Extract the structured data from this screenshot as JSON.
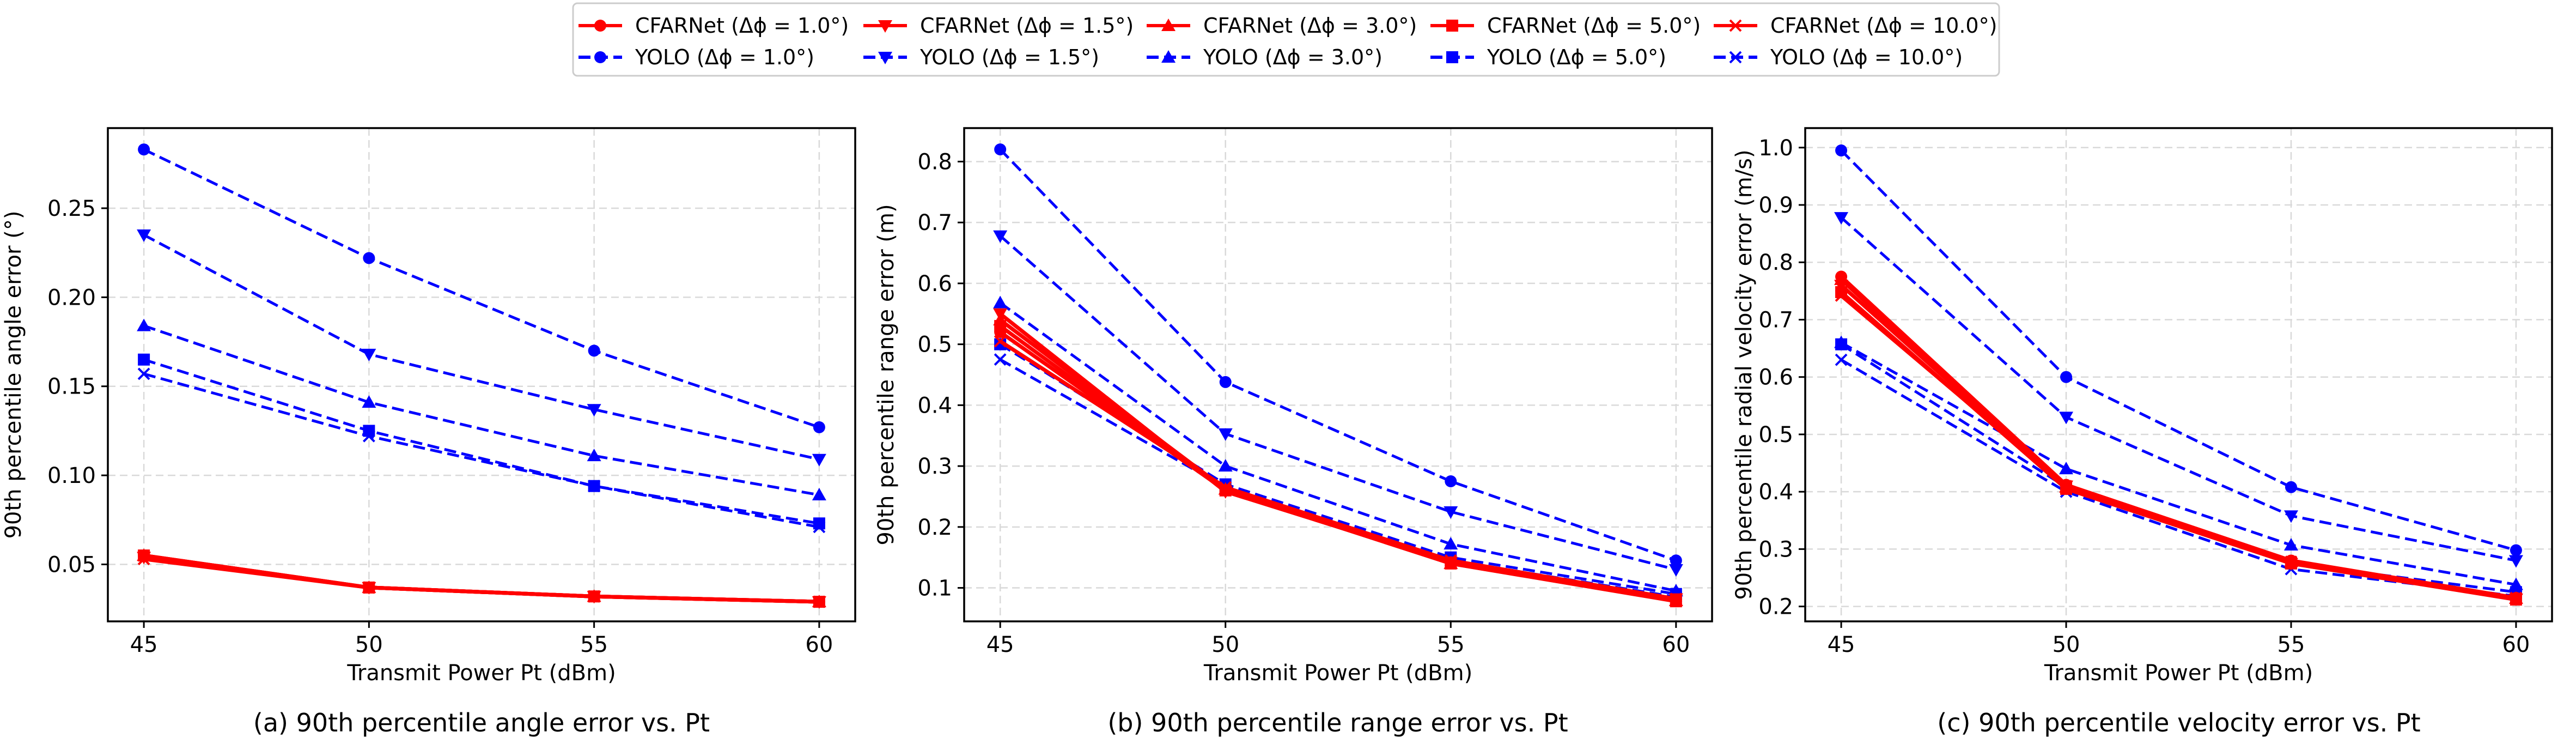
{
  "legend": {
    "entries": [
      {
        "label": "CFARNet (Δϕ = 1.0°)",
        "color": "#ff0000",
        "dash": "solid",
        "marker": "circle"
      },
      {
        "label": "CFARNet (Δϕ = 1.5°)",
        "color": "#ff0000",
        "dash": "solid",
        "marker": "triangle-down"
      },
      {
        "label": "CFARNet (Δϕ = 3.0°)",
        "color": "#ff0000",
        "dash": "solid",
        "marker": "triangle-up"
      },
      {
        "label": "CFARNet (Δϕ = 5.0°)",
        "color": "#ff0000",
        "dash": "solid",
        "marker": "square"
      },
      {
        "label": "CFARNet (Δϕ = 10.0°)",
        "color": "#ff0000",
        "dash": "solid",
        "marker": "x"
      },
      {
        "label": "YOLO (Δϕ = 1.0°)",
        "color": "#0000ff",
        "dash": "dashed",
        "marker": "circle"
      },
      {
        "label": "YOLO (Δϕ = 1.5°)",
        "color": "#0000ff",
        "dash": "dashed",
        "marker": "triangle-down"
      },
      {
        "label": "YOLO (Δϕ = 3.0°)",
        "color": "#0000ff",
        "dash": "dashed",
        "marker": "triangle-up"
      },
      {
        "label": "YOLO (Δϕ = 5.0°)",
        "color": "#0000ff",
        "dash": "dashed",
        "marker": "square"
      },
      {
        "label": "YOLO (Δϕ = 10.0°)",
        "color": "#0000ff",
        "dash": "dashed",
        "marker": "x"
      }
    ]
  },
  "chart_data": [
    {
      "type": "line",
      "title": "(a) 90th percentile angle error vs. Pt",
      "xlabel": "Transmit Power Pt (dBm)",
      "ylabel": "90th percentile angle error (°)",
      "x": [
        45,
        50,
        55,
        60
      ],
      "xticks": [
        45,
        50,
        55,
        60
      ],
      "xlim": [
        44.2,
        60.8
      ],
      "yticks": [
        0.05,
        0.1,
        0.15,
        0.2,
        0.25
      ],
      "yticklabels": [
        "0.05",
        "0.10",
        "0.15",
        "0.20",
        "0.25"
      ],
      "ylim": [
        0.018,
        0.295
      ],
      "grid": true,
      "series": [
        {
          "name": "YOLO (Δϕ = 1.0°)",
          "values": [
            0.283,
            0.222,
            0.17,
            0.127
          ]
        },
        {
          "name": "YOLO (Δϕ = 1.5°)",
          "values": [
            0.235,
            0.168,
            0.137,
            0.109
          ]
        },
        {
          "name": "YOLO (Δϕ = 3.0°)",
          "values": [
            0.184,
            0.141,
            0.111,
            0.089
          ]
        },
        {
          "name": "YOLO (Δϕ = 5.0°)",
          "values": [
            0.165,
            0.125,
            0.094,
            0.073
          ]
        },
        {
          "name": "YOLO (Δϕ = 10.0°)",
          "values": [
            0.157,
            0.122,
            0.094,
            0.071
          ]
        },
        {
          "name": "CFARNet (Δϕ = 1.0°)",
          "values": [
            0.055,
            0.037,
            0.032,
            0.029
          ]
        },
        {
          "name": "CFARNet (Δϕ = 1.5°)",
          "values": [
            0.054,
            0.037,
            0.032,
            0.029
          ]
        },
        {
          "name": "CFARNet (Δϕ = 3.0°)",
          "values": [
            0.055,
            0.037,
            0.032,
            0.029
          ]
        },
        {
          "name": "CFARNet (Δϕ = 5.0°)",
          "values": [
            0.055,
            0.037,
            0.032,
            0.029
          ]
        },
        {
          "name": "CFARNet (Δϕ = 10.0°)",
          "values": [
            0.053,
            0.037,
            0.032,
            0.029
          ]
        }
      ]
    },
    {
      "type": "line",
      "title": "(b) 90th percentile range error vs. Pt",
      "xlabel": "Transmit Power Pt (dBm)",
      "ylabel": "90th percentile range error (m)",
      "x": [
        45,
        50,
        55,
        60
      ],
      "xticks": [
        45,
        50,
        55,
        60
      ],
      "xlim": [
        44.2,
        60.8
      ],
      "yticks": [
        0.1,
        0.2,
        0.3,
        0.4,
        0.5,
        0.6,
        0.7,
        0.8
      ],
      "yticklabels": [
        "0.1",
        "0.2",
        "0.3",
        "0.4",
        "0.5",
        "0.6",
        "0.7",
        "0.8"
      ],
      "ylim": [
        0.045,
        0.855
      ],
      "grid": true,
      "series": [
        {
          "name": "YOLO (Δϕ = 1.0°)",
          "values": [
            0.82,
            0.438,
            0.275,
            0.145
          ]
        },
        {
          "name": "YOLO (Δϕ = 1.5°)",
          "values": [
            0.678,
            0.353,
            0.225,
            0.13
          ]
        },
        {
          "name": "YOLO (Δϕ = 3.0°)",
          "values": [
            0.568,
            0.3,
            0.172,
            0.095
          ]
        },
        {
          "name": "YOLO (Δϕ = 5.0°)",
          "values": [
            0.5,
            0.27,
            0.15,
            0.09
          ]
        },
        {
          "name": "YOLO (Δϕ = 10.0°)",
          "values": [
            0.475,
            0.265,
            0.145,
            0.085
          ]
        },
        {
          "name": "CFARNet (Δϕ = 1.0°)",
          "values": [
            0.52,
            0.26,
            0.142,
            0.08
          ]
        },
        {
          "name": "CFARNet (Δϕ = 1.5°)",
          "values": [
            0.55,
            0.258,
            0.142,
            0.082
          ]
        },
        {
          "name": "CFARNet (Δϕ = 3.0°)",
          "values": [
            0.54,
            0.262,
            0.14,
            0.079
          ]
        },
        {
          "name": "CFARNet (Δϕ = 5.0°)",
          "values": [
            0.53,
            0.26,
            0.14,
            0.078
          ]
        },
        {
          "name": "CFARNet (Δϕ = 10.0°)",
          "values": [
            0.505,
            0.265,
            0.145,
            0.082
          ]
        }
      ]
    },
    {
      "type": "line",
      "title": "(c) 90th percentile velocity error vs. Pt",
      "xlabel": "Transmit Power Pt (dBm)",
      "ylabel": "90th percentile radial velocity error (m/s)",
      "x": [
        45,
        50,
        55,
        60
      ],
      "xticks": [
        45,
        50,
        55,
        60
      ],
      "xlim": [
        44.2,
        60.8
      ],
      "yticks": [
        0.2,
        0.3,
        0.4,
        0.5,
        0.6,
        0.7,
        0.8,
        0.9,
        1.0
      ],
      "yticklabels": [
        "0.2",
        "0.3",
        "0.4",
        "0.5",
        "0.6",
        "0.7",
        "0.8",
        "0.9",
        "1.0"
      ],
      "ylim": [
        0.174,
        1.034
      ],
      "grid": true,
      "series": [
        {
          "name": "YOLO (Δϕ = 1.0°)",
          "values": [
            0.995,
            0.6,
            0.408,
            0.298
          ]
        },
        {
          "name": "YOLO (Δϕ = 1.5°)",
          "values": [
            0.878,
            0.53,
            0.358,
            0.28
          ]
        },
        {
          "name": "YOLO (Δϕ = 3.0°)",
          "values": [
            0.66,
            0.44,
            0.307,
            0.238
          ]
        },
        {
          "name": "YOLO (Δϕ = 5.0°)",
          "values": [
            0.657,
            0.408,
            0.275,
            0.225
          ]
        },
        {
          "name": "YOLO (Δϕ = 10.0°)",
          "values": [
            0.63,
            0.4,
            0.265,
            0.218
          ]
        },
        {
          "name": "CFARNet (Δϕ = 1.0°)",
          "values": [
            0.775,
            0.412,
            0.28,
            0.215
          ]
        },
        {
          "name": "CFARNet (Δϕ = 1.5°)",
          "values": [
            0.76,
            0.41,
            0.275,
            0.213
          ]
        },
        {
          "name": "CFARNet (Δϕ = 3.0°)",
          "values": [
            0.77,
            0.408,
            0.278,
            0.214
          ]
        },
        {
          "name": "CFARNet (Δϕ = 5.0°)",
          "values": [
            0.748,
            0.405,
            0.275,
            0.212
          ]
        },
        {
          "name": "CFARNet (Δϕ = 10.0°)",
          "values": [
            0.742,
            0.41,
            0.278,
            0.215
          ]
        }
      ]
    }
  ]
}
